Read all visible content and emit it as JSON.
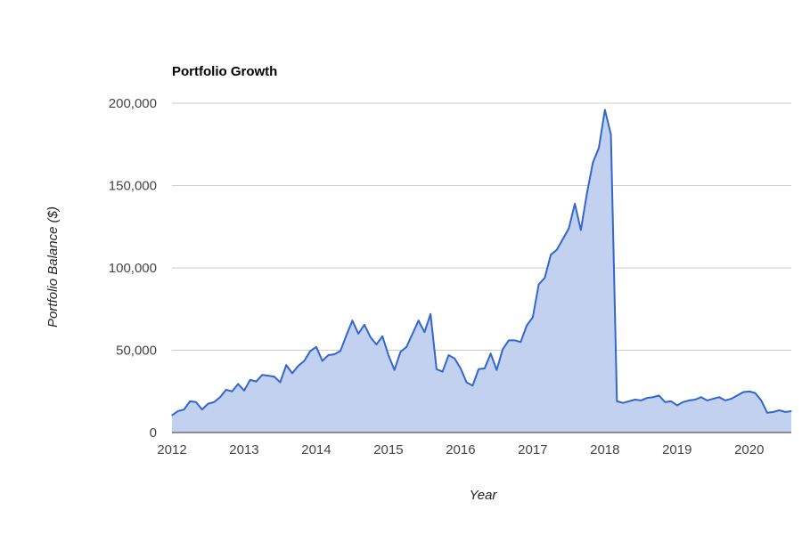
{
  "chart_data": {
    "type": "area",
    "title": "Portfolio Growth",
    "xlabel": "Year",
    "ylabel": "Portfolio Balance ($)",
    "xlim": [
      "2012-01",
      "2020-08"
    ],
    "ylim": [
      0,
      200000
    ],
    "grid": true,
    "legend": "none",
    "x_ticks": [
      "2012",
      "2013",
      "2014",
      "2015",
      "2016",
      "2017",
      "2018",
      "2019",
      "2020"
    ],
    "y_ticks": [
      "0",
      "50,000",
      "100,000",
      "150,000",
      "200,000"
    ],
    "colors": {
      "line": "#3366cc",
      "fill": "#c2d1f0",
      "grid": "#cccccc"
    },
    "series": [
      {
        "x": [
          "2012-01",
          "2012-02",
          "2012-03",
          "2012-04",
          "2012-05",
          "2012-06",
          "2012-07",
          "2012-08",
          "2012-09",
          "2012-10",
          "2012-11",
          "2012-12",
          "2013-01",
          "2013-02",
          "2013-03",
          "2013-04",
          "2013-05",
          "2013-06",
          "2013-07",
          "2013-08",
          "2013-09",
          "2013-10",
          "2013-11",
          "2013-12",
          "2014-01",
          "2014-02",
          "2014-03",
          "2014-04",
          "2014-05",
          "2014-06",
          "2014-07",
          "2014-08",
          "2014-09",
          "2014-10",
          "2014-11",
          "2014-12",
          "2015-01",
          "2015-02",
          "2015-03",
          "2015-04",
          "2015-05",
          "2015-06",
          "2015-07",
          "2015-08",
          "2015-09",
          "2015-10",
          "2015-11",
          "2015-12",
          "2016-01",
          "2016-02",
          "2016-03",
          "2016-04",
          "2016-05",
          "2016-06",
          "2016-07",
          "2016-08",
          "2016-09",
          "2016-10",
          "2016-11",
          "2016-12",
          "2017-01",
          "2017-02",
          "2017-03",
          "2017-04",
          "2017-05",
          "2017-06",
          "2017-07",
          "2017-08",
          "2017-09",
          "2017-10",
          "2017-11",
          "2017-12",
          "2018-01",
          "2018-02",
          "2018-03",
          "2018-04",
          "2018-05",
          "2018-06",
          "2018-07",
          "2018-08",
          "2018-09",
          "2018-10",
          "2018-11",
          "2018-12",
          "2019-01",
          "2019-02",
          "2019-03",
          "2019-04",
          "2019-05",
          "2019-06",
          "2019-07",
          "2019-08",
          "2019-09",
          "2019-10",
          "2019-11",
          "2019-12",
          "2020-01",
          "2020-02",
          "2020-03",
          "2020-04",
          "2020-05",
          "2020-06",
          "2020-07",
          "2020-08"
        ],
        "values": [
          10500,
          13000,
          14000,
          19000,
          18500,
          14000,
          17500,
          18500,
          21500,
          26000,
          25000,
          29500,
          25500,
          32000,
          31000,
          35000,
          34500,
          34000,
          30500,
          41000,
          36000,
          40500,
          43500,
          49500,
          52000,
          43500,
          47000,
          47500,
          49500,
          59000,
          68000,
          60000,
          65500,
          58000,
          53500,
          58500,
          47000,
          38000,
          49000,
          52000,
          60000,
          68000,
          61000,
          72000,
          38500,
          37000,
          47000,
          45000,
          39000,
          30500,
          28500,
          38500,
          39000,
          48000,
          38000,
          50500,
          56000,
          56000,
          55000,
          65000,
          70000,
          90000,
          94000,
          108000,
          111000,
          117500,
          124000,
          139000,
          123000,
          145000,
          164000,
          173000,
          196000,
          181000,
          19000,
          18000,
          19000,
          20000,
          19500,
          21000,
          21500,
          22500,
          18500,
          19000,
          16500,
          18500,
          19500,
          20000,
          21500,
          19500,
          20500,
          21500,
          19500,
          20500,
          22500,
          24500,
          25000,
          24000,
          19500,
          12000,
          12500,
          13500,
          12500,
          13000
        ]
      }
    ]
  }
}
